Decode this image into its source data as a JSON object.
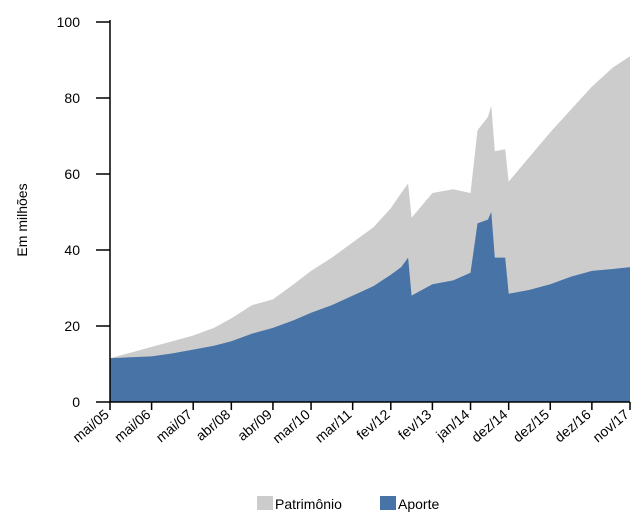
{
  "chart_data": {
    "type": "area",
    "ylabel": "Em milhões",
    "xlabel": "",
    "ylim": [
      0,
      100
    ],
    "yticks": [
      0,
      20,
      40,
      60,
      80,
      100
    ],
    "x_tick_labels": [
      "mai/05",
      "mai/06",
      "mai/07",
      "abr/08",
      "abr/09",
      "mar/10",
      "mar/11",
      "fev/12",
      "fev/13",
      "jan/14",
      "dez/14",
      "dez/15",
      "dez/16",
      "nov/17"
    ],
    "legend_position": "bottom",
    "grid": false,
    "series": [
      {
        "name": "Patrimônio",
        "color": "#cccccc",
        "x": [
          "mai/05",
          "nov/05",
          "mai/06",
          "nov/06",
          "mai/07",
          "nov/07",
          "abr/08",
          "out/08",
          "abr/09",
          "out/09",
          "mar/10",
          "set/10",
          "mar/11",
          "set/11",
          "fev/12",
          "mai/12",
          "jul/12",
          "ago/12",
          "fev/13",
          "ago/13",
          "jan/14",
          "mar/14",
          "jun/14",
          "jul/14",
          "ago/14",
          "nov/14",
          "dez/14",
          "jun/15",
          "dez/15",
          "jun/16",
          "dez/16",
          "jun/17",
          "nov/17"
        ],
        "values": [
          11.5,
          13.0,
          14.5,
          16.0,
          17.5,
          19.5,
          22.0,
          25.5,
          27.0,
          31.0,
          34.5,
          38.0,
          42.0,
          46.0,
          51.0,
          55.0,
          57.5,
          48.5,
          55.0,
          56.0,
          55.0,
          71.5,
          75.0,
          78.0,
          66.0,
          66.5,
          58.0,
          64.5,
          71.0,
          77.0,
          83.0,
          88.0,
          91.0
        ]
      },
      {
        "name": "Aporte",
        "color": "#4873a6",
        "x": [
          "mai/05",
          "nov/05",
          "mai/06",
          "nov/06",
          "mai/07",
          "nov/07",
          "abr/08",
          "out/08",
          "abr/09",
          "out/09",
          "mar/10",
          "set/10",
          "mar/11",
          "set/11",
          "fev/12",
          "mai/12",
          "jul/12",
          "ago/12",
          "fev/13",
          "ago/13",
          "jan/14",
          "mar/14",
          "jun/14",
          "jul/14",
          "ago/14",
          "nov/14",
          "dez/14",
          "jun/15",
          "dez/15",
          "jun/16",
          "dez/16",
          "jun/17",
          "nov/17"
        ],
        "values": [
          11.5,
          11.8,
          12.0,
          12.8,
          13.8,
          14.8,
          16.0,
          18.0,
          19.5,
          21.5,
          23.5,
          25.5,
          28.0,
          30.5,
          33.5,
          35.5,
          38.0,
          28.0,
          31.0,
          32.0,
          34.0,
          47.0,
          48.0,
          50.0,
          38.0,
          38.0,
          28.5,
          29.5,
          31.0,
          33.0,
          34.5,
          35.0,
          35.5
        ]
      }
    ]
  }
}
